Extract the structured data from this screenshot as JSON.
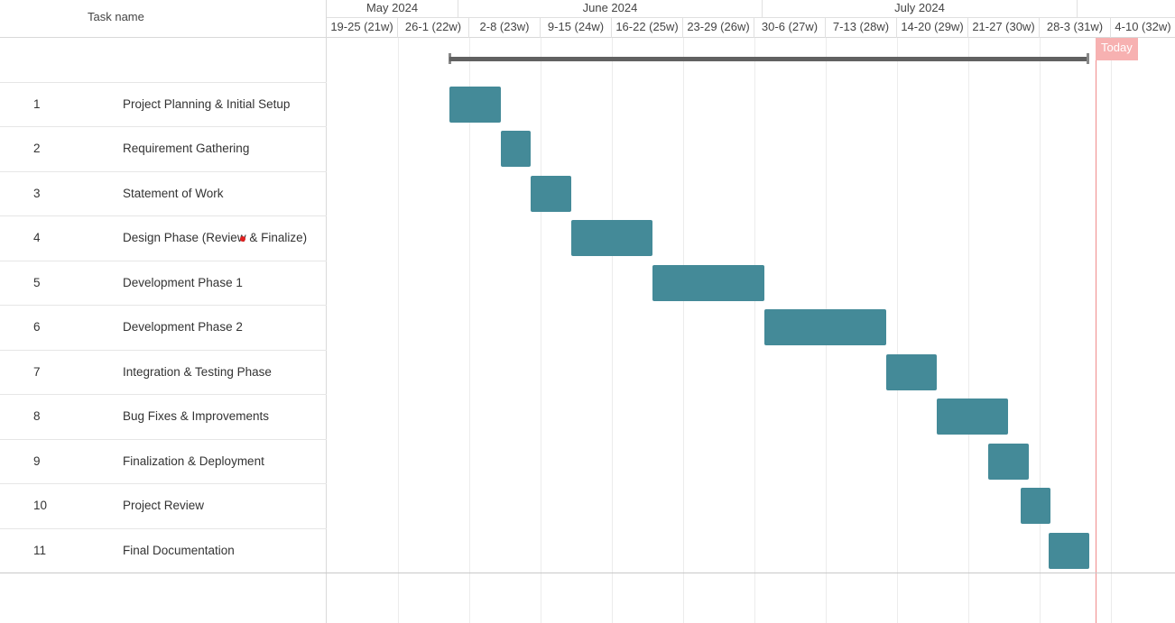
{
  "grid": {
    "header_task_name": "Task name",
    "tasks": [
      {
        "id": "1",
        "name": "Project Planning & Initial Setup"
      },
      {
        "id": "2",
        "name": "Requirement Gathering"
      },
      {
        "id": "3",
        "name": "Statement of Work"
      },
      {
        "id": "4",
        "name": "Design Phase (Review & Finalize)"
      },
      {
        "id": "5",
        "name": "Development Phase 1"
      },
      {
        "id": "6",
        "name": "Development Phase 2"
      },
      {
        "id": "7",
        "name": "Integration & Testing Phase"
      },
      {
        "id": "8",
        "name": "Bug Fixes & Improvements"
      },
      {
        "id": "9",
        "name": "Finalization & Deployment"
      },
      {
        "id": "10",
        "name": "Project Review"
      },
      {
        "id": "11",
        "name": "Final Documentation"
      }
    ]
  },
  "timeline": {
    "months": [
      "May 2024",
      "June 2024",
      "July 2024"
    ],
    "weeks": [
      "19-25 (21w)",
      "26-1 (22w)",
      "2-8 (23w)",
      "9-15 (24w)",
      "16-22 (25w)",
      "23-29 (26w)",
      "30-6 (27w)",
      "7-13 (28w)",
      "14-20 (29w)",
      "21-27 (30w)",
      "28-3 (31w)",
      "4-10 (32w)"
    ],
    "today_label": "Today"
  },
  "colors": {
    "bar": "#448a98",
    "summary_bar": "#616161",
    "today": "#f08a8a"
  }
}
